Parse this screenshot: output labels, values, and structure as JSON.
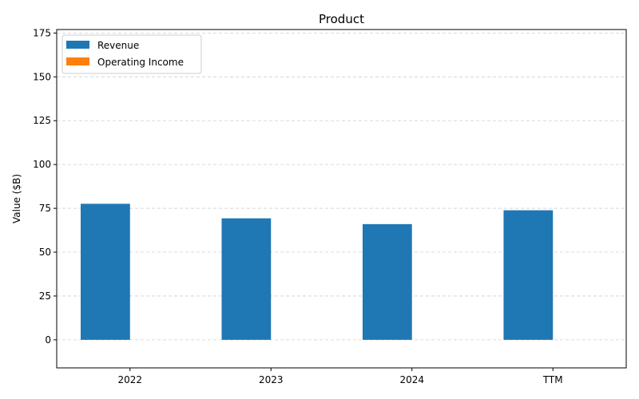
{
  "chart_data": {
    "type": "bar",
    "title": "Product",
    "xlabel": "",
    "ylabel": "Value ($B)",
    "categories": [
      "2022",
      "2023",
      "2024",
      "TTM"
    ],
    "series": [
      {
        "name": "Revenue",
        "color": "#1f77b4",
        "values": [
          77.6,
          69.3,
          66.0,
          73.9
        ]
      },
      {
        "name": "Operating Income",
        "color": "#ff7f0e",
        "values": [
          0,
          0,
          0,
          0
        ]
      }
    ],
    "ylim": [
      -16,
      177
    ],
    "yticks": [
      "0",
      "25",
      "50",
      "75",
      "100",
      "125",
      "150",
      "175"
    ],
    "grid": true,
    "legend_position": "top-left"
  }
}
